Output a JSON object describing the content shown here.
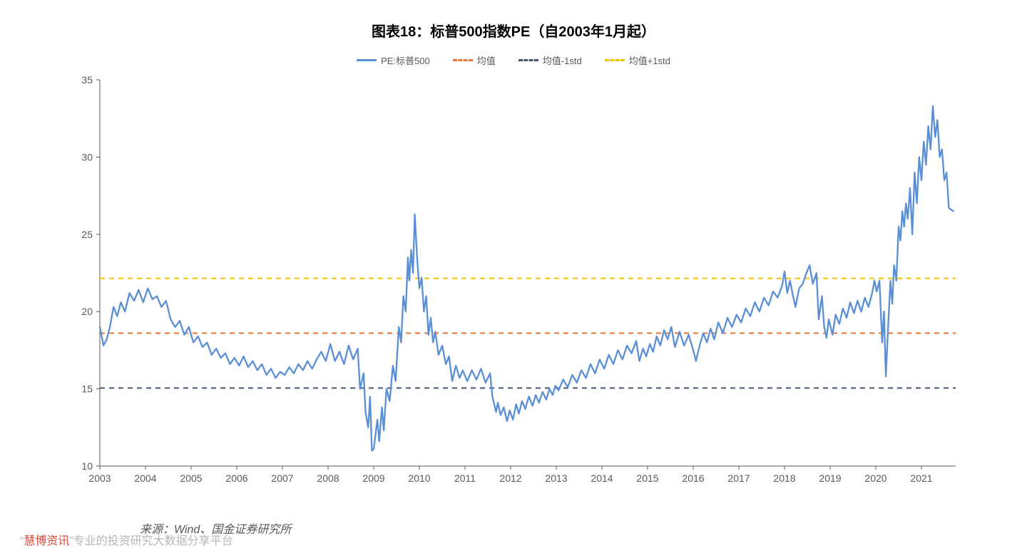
{
  "title": {
    "text": "图表18：标普500指数PE（自2003年1月起）",
    "fontsize": 20,
    "color": "#000000"
  },
  "legend": {
    "items": [
      {
        "label": "PE:标普500",
        "color": "#5a8fd6",
        "style": "solid"
      },
      {
        "label": "均值",
        "color": "#e97538",
        "style": "dashed"
      },
      {
        "label": "均值-1std",
        "color": "#43546e",
        "style": "dashed"
      },
      {
        "label": "均值+1std",
        "color": "#f2c300",
        "style": "dashed"
      }
    ],
    "fontsize": 13
  },
  "chart": {
    "type": "line",
    "background_color": "#ffffff",
    "plot_border_color": "#595959",
    "title_fontsize": 20,
    "x": {
      "ticks": [
        "2003",
        "2004",
        "2005",
        "2006",
        "2007",
        "2008",
        "2009",
        "2010",
        "2011",
        "2012",
        "2013",
        "2014",
        "2015",
        "2016",
        "2017",
        "2018",
        "2019",
        "2020",
        "2021"
      ],
      "tick_positions": [
        0,
        1,
        2,
        3,
        4,
        5,
        6,
        7,
        8,
        9,
        10,
        11,
        12,
        13,
        14,
        15,
        16,
        17,
        18
      ],
      "xlim": [
        0,
        18.75
      ],
      "label_fontsize": 14,
      "tick_color": "#595959"
    },
    "y": {
      "ticks": [
        10,
        15,
        20,
        25,
        30,
        35
      ],
      "ylim": [
        10,
        35
      ],
      "label_fontsize": 14,
      "tick_color": "#595959"
    },
    "ref_lines": {
      "mean": {
        "value": 18.6,
        "color": "#e97538",
        "dash": "7,6",
        "width": 2
      },
      "mean_minus_1std": {
        "value": 15.05,
        "color": "#43546e",
        "dash": "7,6",
        "width": 2
      },
      "mean_plus_1std": {
        "value": 22.15,
        "color": "#f2c300",
        "dash": "7,6",
        "width": 2
      }
    },
    "series": {
      "name": "PE:标普500",
      "color": "#5a8fd6",
      "line_width": 2.3,
      "points": [
        [
          0.0,
          19.0
        ],
        [
          0.08,
          17.8
        ],
        [
          0.15,
          18.2
        ],
        [
          0.22,
          19.0
        ],
        [
          0.3,
          20.3
        ],
        [
          0.38,
          19.7
        ],
        [
          0.46,
          20.6
        ],
        [
          0.55,
          20.0
        ],
        [
          0.65,
          21.2
        ],
        [
          0.75,
          20.7
        ],
        [
          0.85,
          21.4
        ],
        [
          0.95,
          20.6
        ],
        [
          1.05,
          21.5
        ],
        [
          1.15,
          20.8
        ],
        [
          1.25,
          21.0
        ],
        [
          1.35,
          20.3
        ],
        [
          1.45,
          20.7
        ],
        [
          1.55,
          19.5
        ],
        [
          1.65,
          19.0
        ],
        [
          1.75,
          19.4
        ],
        [
          1.85,
          18.5
        ],
        [
          1.95,
          19.0
        ],
        [
          2.05,
          18.0
        ],
        [
          2.15,
          18.4
        ],
        [
          2.25,
          17.7
        ],
        [
          2.35,
          18.0
        ],
        [
          2.45,
          17.2
        ],
        [
          2.55,
          17.6
        ],
        [
          2.65,
          17.0
        ],
        [
          2.75,
          17.3
        ],
        [
          2.85,
          16.6
        ],
        [
          2.95,
          17.0
        ],
        [
          3.05,
          16.5
        ],
        [
          3.15,
          17.1
        ],
        [
          3.25,
          16.4
        ],
        [
          3.35,
          16.8
        ],
        [
          3.45,
          16.2
        ],
        [
          3.55,
          16.6
        ],
        [
          3.65,
          15.9
        ],
        [
          3.75,
          16.3
        ],
        [
          3.85,
          15.7
        ],
        [
          3.95,
          16.1
        ],
        [
          4.05,
          15.9
        ],
        [
          4.15,
          16.4
        ],
        [
          4.25,
          16.0
        ],
        [
          4.35,
          16.6
        ],
        [
          4.45,
          16.2
        ],
        [
          4.55,
          16.8
        ],
        [
          4.65,
          16.3
        ],
        [
          4.75,
          16.9
        ],
        [
          4.85,
          17.4
        ],
        [
          4.95,
          16.8
        ],
        [
          5.05,
          17.9
        ],
        [
          5.15,
          16.8
        ],
        [
          5.25,
          17.4
        ],
        [
          5.35,
          16.6
        ],
        [
          5.45,
          17.8
        ],
        [
          5.55,
          16.9
        ],
        [
          5.65,
          17.6
        ],
        [
          5.7,
          15.0
        ],
        [
          5.78,
          16.0
        ],
        [
          5.82,
          13.5
        ],
        [
          5.88,
          12.5
        ],
        [
          5.92,
          14.5
        ],
        [
          5.96,
          11.0
        ],
        [
          6.0,
          11.1
        ],
        [
          6.08,
          13.0
        ],
        [
          6.12,
          11.6
        ],
        [
          6.18,
          13.8
        ],
        [
          6.22,
          12.3
        ],
        [
          6.28,
          15.0
        ],
        [
          6.35,
          14.2
        ],
        [
          6.42,
          16.5
        ],
        [
          6.48,
          15.5
        ],
        [
          6.55,
          19.0
        ],
        [
          6.6,
          18.0
        ],
        [
          6.65,
          21.0
        ],
        [
          6.7,
          20.0
        ],
        [
          6.75,
          23.5
        ],
        [
          6.78,
          22.0
        ],
        [
          6.82,
          24.0
        ],
        [
          6.86,
          22.5
        ],
        [
          6.9,
          26.3
        ],
        [
          6.95,
          23.5
        ],
        [
          7.0,
          21.5
        ],
        [
          7.05,
          22.2
        ],
        [
          7.1,
          20.0
        ],
        [
          7.15,
          21.0
        ],
        [
          7.2,
          18.5
        ],
        [
          7.25,
          19.6
        ],
        [
          7.3,
          18.0
        ],
        [
          7.35,
          18.7
        ],
        [
          7.42,
          17.2
        ],
        [
          7.5,
          17.8
        ],
        [
          7.58,
          16.6
        ],
        [
          7.65,
          17.1
        ],
        [
          7.72,
          15.5
        ],
        [
          7.8,
          16.5
        ],
        [
          7.88,
          15.7
        ],
        [
          7.95,
          16.2
        ],
        [
          8.05,
          15.5
        ],
        [
          8.15,
          16.2
        ],
        [
          8.25,
          15.6
        ],
        [
          8.35,
          16.3
        ],
        [
          8.45,
          15.4
        ],
        [
          8.55,
          16.0
        ],
        [
          8.6,
          14.5
        ],
        [
          8.68,
          13.5
        ],
        [
          8.72,
          14.1
        ],
        [
          8.78,
          13.3
        ],
        [
          8.85,
          13.8
        ],
        [
          8.92,
          12.9
        ],
        [
          8.98,
          13.6
        ],
        [
          9.05,
          13.0
        ],
        [
          9.12,
          14.0
        ],
        [
          9.18,
          13.4
        ],
        [
          9.25,
          14.2
        ],
        [
          9.32,
          13.7
        ],
        [
          9.4,
          14.5
        ],
        [
          9.48,
          13.9
        ],
        [
          9.55,
          14.6
        ],
        [
          9.62,
          14.1
        ],
        [
          9.7,
          14.8
        ],
        [
          9.78,
          14.3
        ],
        [
          9.85,
          15.0
        ],
        [
          9.92,
          14.6
        ],
        [
          9.98,
          15.2
        ],
        [
          10.05,
          14.9
        ],
        [
          10.15,
          15.6
        ],
        [
          10.25,
          15.1
        ],
        [
          10.35,
          15.9
        ],
        [
          10.45,
          15.4
        ],
        [
          10.55,
          16.2
        ],
        [
          10.65,
          15.7
        ],
        [
          10.75,
          16.6
        ],
        [
          10.85,
          16.0
        ],
        [
          10.95,
          16.9
        ],
        [
          11.05,
          16.3
        ],
        [
          11.15,
          17.2
        ],
        [
          11.25,
          16.6
        ],
        [
          11.35,
          17.5
        ],
        [
          11.45,
          16.9
        ],
        [
          11.55,
          17.8
        ],
        [
          11.65,
          17.3
        ],
        [
          11.75,
          18.1
        ],
        [
          11.82,
          16.8
        ],
        [
          11.9,
          17.6
        ],
        [
          11.97,
          17.1
        ],
        [
          12.05,
          17.9
        ],
        [
          12.12,
          17.4
        ],
        [
          12.2,
          18.4
        ],
        [
          12.28,
          17.8
        ],
        [
          12.36,
          18.8
        ],
        [
          12.44,
          18.2
        ],
        [
          12.52,
          19.0
        ],
        [
          12.6,
          17.7
        ],
        [
          12.7,
          18.7
        ],
        [
          12.8,
          17.8
        ],
        [
          12.9,
          18.5
        ],
        [
          13.0,
          17.5
        ],
        [
          13.06,
          16.8
        ],
        [
          13.14,
          17.8
        ],
        [
          13.22,
          18.6
        ],
        [
          13.3,
          18.0
        ],
        [
          13.38,
          18.9
        ],
        [
          13.46,
          18.2
        ],
        [
          13.55,
          19.3
        ],
        [
          13.65,
          18.6
        ],
        [
          13.75,
          19.6
        ],
        [
          13.85,
          19.0
        ],
        [
          13.95,
          19.8
        ],
        [
          14.05,
          19.3
        ],
        [
          14.15,
          20.2
        ],
        [
          14.25,
          19.7
        ],
        [
          14.35,
          20.6
        ],
        [
          14.45,
          20.0
        ],
        [
          14.55,
          20.9
        ],
        [
          14.65,
          20.4
        ],
        [
          14.75,
          21.3
        ],
        [
          14.85,
          20.9
        ],
        [
          14.95,
          21.7
        ],
        [
          15.0,
          22.6
        ],
        [
          15.06,
          21.2
        ],
        [
          15.12,
          22.0
        ],
        [
          15.18,
          21.1
        ],
        [
          15.24,
          20.3
        ],
        [
          15.32,
          21.5
        ],
        [
          15.4,
          21.8
        ],
        [
          15.48,
          22.5
        ],
        [
          15.55,
          23.0
        ],
        [
          15.62,
          21.8
        ],
        [
          15.7,
          22.5
        ],
        [
          15.75,
          19.5
        ],
        [
          15.82,
          21.0
        ],
        [
          15.87,
          19.0
        ],
        [
          15.92,
          18.3
        ],
        [
          15.97,
          19.5
        ],
        [
          16.05,
          18.5
        ],
        [
          16.12,
          19.8
        ],
        [
          16.2,
          19.2
        ],
        [
          16.28,
          20.2
        ],
        [
          16.36,
          19.6
        ],
        [
          16.44,
          20.6
        ],
        [
          16.52,
          19.9
        ],
        [
          16.6,
          20.7
        ],
        [
          16.68,
          20.0
        ],
        [
          16.76,
          20.9
        ],
        [
          16.84,
          20.3
        ],
        [
          16.92,
          21.2
        ],
        [
          16.97,
          22.0
        ],
        [
          17.02,
          21.3
        ],
        [
          17.08,
          22.0
        ],
        [
          17.14,
          18.0
        ],
        [
          17.18,
          20.0
        ],
        [
          17.22,
          15.8
        ],
        [
          17.27,
          19.0
        ],
        [
          17.32,
          22.0
        ],
        [
          17.36,
          20.5
        ],
        [
          17.4,
          23.0
        ],
        [
          17.45,
          22.0
        ],
        [
          17.5,
          25.5
        ],
        [
          17.54,
          24.6
        ],
        [
          17.58,
          26.5
        ],
        [
          17.62,
          25.5
        ],
        [
          17.66,
          27.0
        ],
        [
          17.7,
          26.0
        ],
        [
          17.75,
          28.0
        ],
        [
          17.8,
          25.0
        ],
        [
          17.85,
          29.0
        ],
        [
          17.9,
          27.0
        ],
        [
          17.95,
          30.0
        ],
        [
          18.0,
          28.5
        ],
        [
          18.05,
          31.0
        ],
        [
          18.1,
          29.5
        ],
        [
          18.15,
          32.0
        ],
        [
          18.2,
          30.5
        ],
        [
          18.25,
          33.3
        ],
        [
          18.3,
          31.3
        ],
        [
          18.35,
          32.4
        ],
        [
          18.4,
          30.0
        ],
        [
          18.45,
          30.5
        ],
        [
          18.5,
          28.5
        ],
        [
          18.55,
          29.0
        ],
        [
          18.6,
          26.7
        ],
        [
          18.7,
          26.5
        ]
      ]
    }
  },
  "source": {
    "text": "来源：Wind、国金证券研究所",
    "fontsize": 16,
    "color": "#555555"
  },
  "watermark": {
    "quoted": "慧博资讯",
    "tail": "专业的投资研究大数据分享平台",
    "quote_open": "“",
    "quote_close": "”",
    "color_red": "#d64a3a",
    "color_gray": "#b7b7b7",
    "fontsize": 16
  }
}
